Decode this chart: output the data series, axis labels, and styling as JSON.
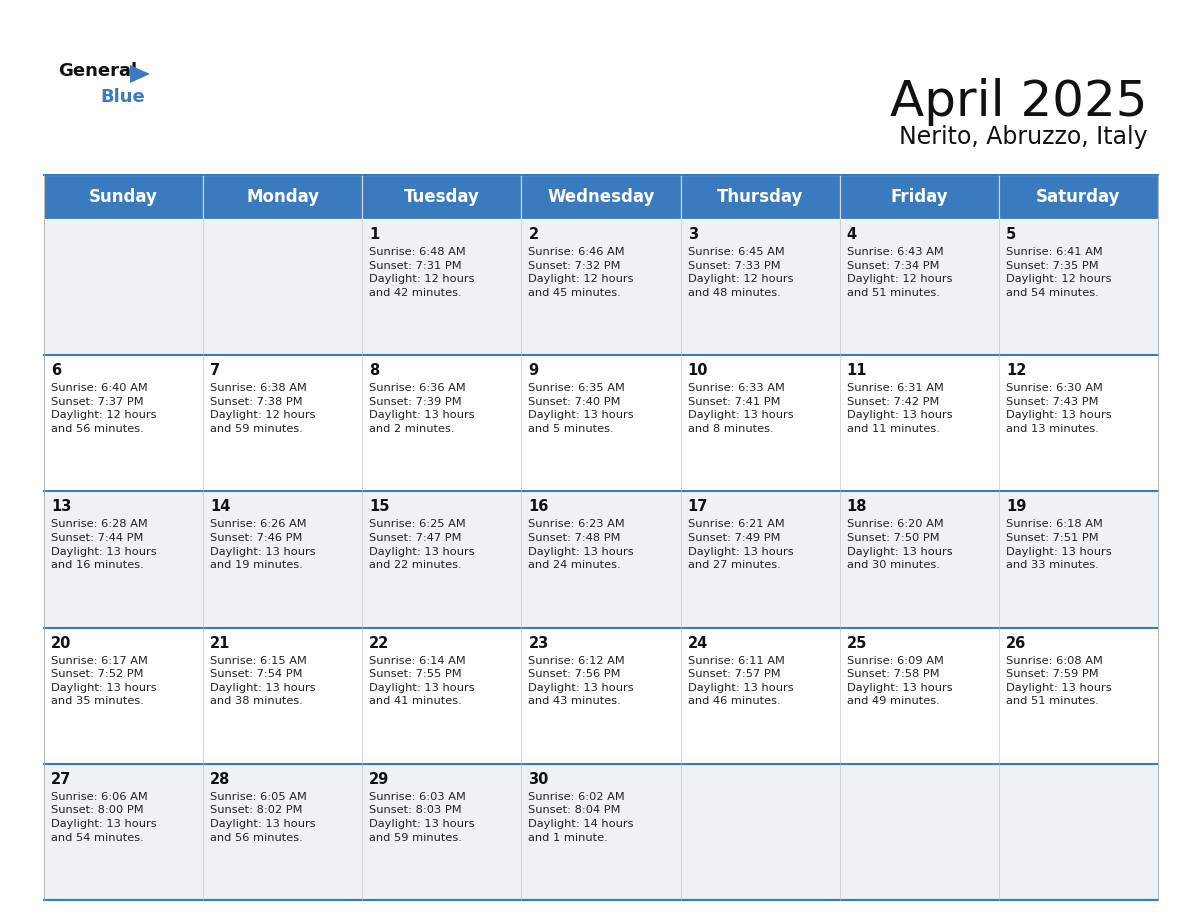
{
  "title": "April 2025",
  "subtitle": "Nerito, Abruzzo, Italy",
  "header_bg": "#3a7bbf",
  "header_text": "#ffffff",
  "row_bg_even": "#eef2f7",
  "row_bg_odd": "#ffffff",
  "cell_border": "#3a7bbf",
  "day_names": [
    "Sunday",
    "Monday",
    "Tuesday",
    "Wednesday",
    "Thursday",
    "Friday",
    "Saturday"
  ],
  "title_fontsize": 36,
  "subtitle_fontsize": 17,
  "header_fontsize": 12,
  "day_num_fontsize": 10.5,
  "info_fontsize": 8.2,
  "logo_general_fontsize": 13,
  "logo_blue_fontsize": 13,
  "calendar": [
    [
      {
        "day": "",
        "sunrise": "",
        "sunset": "",
        "daylight": ""
      },
      {
        "day": "",
        "sunrise": "",
        "sunset": "",
        "daylight": ""
      },
      {
        "day": "1",
        "sunrise": "Sunrise: 6:48 AM",
        "sunset": "Sunset: 7:31 PM",
        "daylight": "Daylight: 12 hours\nand 42 minutes."
      },
      {
        "day": "2",
        "sunrise": "Sunrise: 6:46 AM",
        "sunset": "Sunset: 7:32 PM",
        "daylight": "Daylight: 12 hours\nand 45 minutes."
      },
      {
        "day": "3",
        "sunrise": "Sunrise: 6:45 AM",
        "sunset": "Sunset: 7:33 PM",
        "daylight": "Daylight: 12 hours\nand 48 minutes."
      },
      {
        "day": "4",
        "sunrise": "Sunrise: 6:43 AM",
        "sunset": "Sunset: 7:34 PM",
        "daylight": "Daylight: 12 hours\nand 51 minutes."
      },
      {
        "day": "5",
        "sunrise": "Sunrise: 6:41 AM",
        "sunset": "Sunset: 7:35 PM",
        "daylight": "Daylight: 12 hours\nand 54 minutes."
      }
    ],
    [
      {
        "day": "6",
        "sunrise": "Sunrise: 6:40 AM",
        "sunset": "Sunset: 7:37 PM",
        "daylight": "Daylight: 12 hours\nand 56 minutes."
      },
      {
        "day": "7",
        "sunrise": "Sunrise: 6:38 AM",
        "sunset": "Sunset: 7:38 PM",
        "daylight": "Daylight: 12 hours\nand 59 minutes."
      },
      {
        "day": "8",
        "sunrise": "Sunrise: 6:36 AM",
        "sunset": "Sunset: 7:39 PM",
        "daylight": "Daylight: 13 hours\nand 2 minutes."
      },
      {
        "day": "9",
        "sunrise": "Sunrise: 6:35 AM",
        "sunset": "Sunset: 7:40 PM",
        "daylight": "Daylight: 13 hours\nand 5 minutes."
      },
      {
        "day": "10",
        "sunrise": "Sunrise: 6:33 AM",
        "sunset": "Sunset: 7:41 PM",
        "daylight": "Daylight: 13 hours\nand 8 minutes."
      },
      {
        "day": "11",
        "sunrise": "Sunrise: 6:31 AM",
        "sunset": "Sunset: 7:42 PM",
        "daylight": "Daylight: 13 hours\nand 11 minutes."
      },
      {
        "day": "12",
        "sunrise": "Sunrise: 6:30 AM",
        "sunset": "Sunset: 7:43 PM",
        "daylight": "Daylight: 13 hours\nand 13 minutes."
      }
    ],
    [
      {
        "day": "13",
        "sunrise": "Sunrise: 6:28 AM",
        "sunset": "Sunset: 7:44 PM",
        "daylight": "Daylight: 13 hours\nand 16 minutes."
      },
      {
        "day": "14",
        "sunrise": "Sunrise: 6:26 AM",
        "sunset": "Sunset: 7:46 PM",
        "daylight": "Daylight: 13 hours\nand 19 minutes."
      },
      {
        "day": "15",
        "sunrise": "Sunrise: 6:25 AM",
        "sunset": "Sunset: 7:47 PM",
        "daylight": "Daylight: 13 hours\nand 22 minutes."
      },
      {
        "day": "16",
        "sunrise": "Sunrise: 6:23 AM",
        "sunset": "Sunset: 7:48 PM",
        "daylight": "Daylight: 13 hours\nand 24 minutes."
      },
      {
        "day": "17",
        "sunrise": "Sunrise: 6:21 AM",
        "sunset": "Sunset: 7:49 PM",
        "daylight": "Daylight: 13 hours\nand 27 minutes."
      },
      {
        "day": "18",
        "sunrise": "Sunrise: 6:20 AM",
        "sunset": "Sunset: 7:50 PM",
        "daylight": "Daylight: 13 hours\nand 30 minutes."
      },
      {
        "day": "19",
        "sunrise": "Sunrise: 6:18 AM",
        "sunset": "Sunset: 7:51 PM",
        "daylight": "Daylight: 13 hours\nand 33 minutes."
      }
    ],
    [
      {
        "day": "20",
        "sunrise": "Sunrise: 6:17 AM",
        "sunset": "Sunset: 7:52 PM",
        "daylight": "Daylight: 13 hours\nand 35 minutes."
      },
      {
        "day": "21",
        "sunrise": "Sunrise: 6:15 AM",
        "sunset": "Sunset: 7:54 PM",
        "daylight": "Daylight: 13 hours\nand 38 minutes."
      },
      {
        "day": "22",
        "sunrise": "Sunrise: 6:14 AM",
        "sunset": "Sunset: 7:55 PM",
        "daylight": "Daylight: 13 hours\nand 41 minutes."
      },
      {
        "day": "23",
        "sunrise": "Sunrise: 6:12 AM",
        "sunset": "Sunset: 7:56 PM",
        "daylight": "Daylight: 13 hours\nand 43 minutes."
      },
      {
        "day": "24",
        "sunrise": "Sunrise: 6:11 AM",
        "sunset": "Sunset: 7:57 PM",
        "daylight": "Daylight: 13 hours\nand 46 minutes."
      },
      {
        "day": "25",
        "sunrise": "Sunrise: 6:09 AM",
        "sunset": "Sunset: 7:58 PM",
        "daylight": "Daylight: 13 hours\nand 49 minutes."
      },
      {
        "day": "26",
        "sunrise": "Sunrise: 6:08 AM",
        "sunset": "Sunset: 7:59 PM",
        "daylight": "Daylight: 13 hours\nand 51 minutes."
      }
    ],
    [
      {
        "day": "27",
        "sunrise": "Sunrise: 6:06 AM",
        "sunset": "Sunset: 8:00 PM",
        "daylight": "Daylight: 13 hours\nand 54 minutes."
      },
      {
        "day": "28",
        "sunrise": "Sunrise: 6:05 AM",
        "sunset": "Sunset: 8:02 PM",
        "daylight": "Daylight: 13 hours\nand 56 minutes."
      },
      {
        "day": "29",
        "sunrise": "Sunrise: 6:03 AM",
        "sunset": "Sunset: 8:03 PM",
        "daylight": "Daylight: 13 hours\nand 59 minutes."
      },
      {
        "day": "30",
        "sunrise": "Sunrise: 6:02 AM",
        "sunset": "Sunset: 8:04 PM",
        "daylight": "Daylight: 14 hours\nand 1 minute."
      },
      {
        "day": "",
        "sunrise": "",
        "sunset": "",
        "daylight": ""
      },
      {
        "day": "",
        "sunrise": "",
        "sunset": "",
        "daylight": ""
      },
      {
        "day": "",
        "sunrise": "",
        "sunset": "",
        "daylight": ""
      }
    ]
  ]
}
